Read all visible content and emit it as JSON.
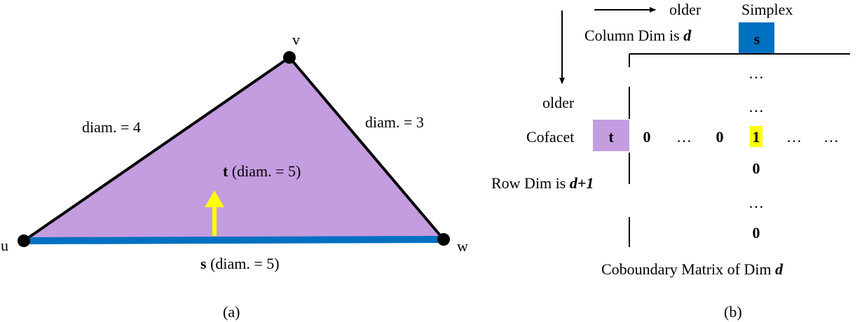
{
  "colors": {
    "triangle_fill": "#c49ce0",
    "simplex_edge": "#0070c0",
    "arrow": "#ffff00",
    "highlight": "#ffff00",
    "cofacet_box": "#c49ce0",
    "simplex_box": "#0070c0",
    "simplex_box_text": "#000000"
  },
  "panel_a": {
    "vertices": {
      "u": "u",
      "v": "v",
      "w": "w"
    },
    "edge_uv_label": "diam. = 4",
    "edge_vw_label": "diam. = 3",
    "face_label_bold": "t",
    "face_label_rest": " (diam. = 5)",
    "edge_uw_label_bold": "s",
    "edge_uw_label_rest": " (diam. = 5)",
    "caption": "(a)"
  },
  "panel_b": {
    "column_order_label": "older",
    "simplex_header": "Simplex",
    "column_dim_prefix": "Column Dim is ",
    "column_dim_var": "d",
    "simplex_box_label": "s",
    "row_order_label": "older",
    "cofacet_label": "Cofacet",
    "cofacet_box_label": "t",
    "row_dim_prefix": "Row Dim is ",
    "row_dim_var": "d+1",
    "column_entries": [
      "…",
      "…",
      "0",
      "…",
      "0"
    ],
    "row_entries": [
      "0",
      "…",
      "0",
      "1",
      "…",
      "…"
    ],
    "caption_prefix": "Coboundary Matrix of Dim ",
    "caption_var": "d",
    "panel_caption": "(b)"
  }
}
